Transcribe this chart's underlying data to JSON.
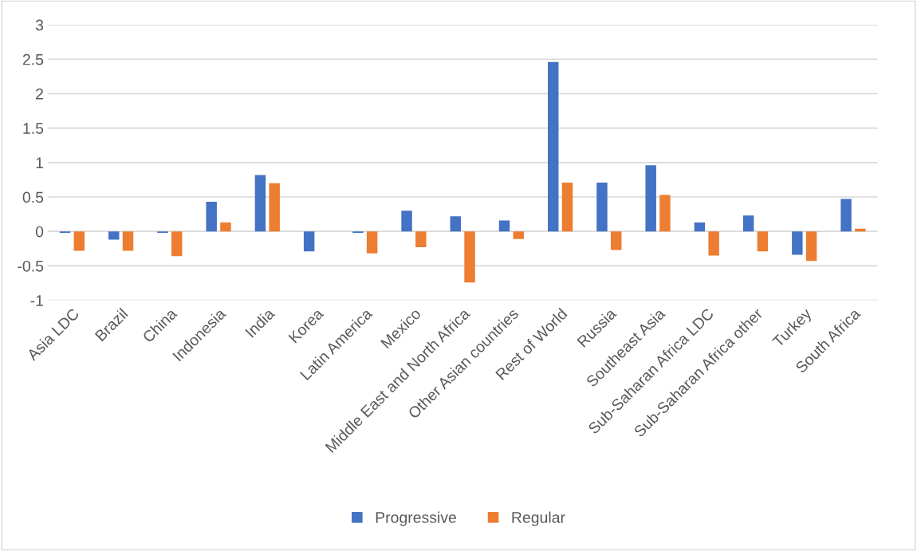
{
  "chart_data": {
    "type": "bar",
    "categories": [
      "Asia LDC",
      "Brazil",
      "China",
      "Indonesia",
      "India",
      "Korea",
      "Latin America",
      "Mexico",
      "Middle East and North Africa",
      "Other Asian countries",
      "Rest of World",
      "Russia",
      "Southeast Asia",
      "Sub-Saharan Africa LDC",
      "Sub-Saharan Africa other",
      "Turkey",
      "South Africa"
    ],
    "series": [
      {
        "name": "Progressive",
        "color": "#4472c4",
        "values": [
          -0.02,
          -0.12,
          -0.02,
          0.43,
          0.82,
          -0.29,
          -0.02,
          0.3,
          0.22,
          0.16,
          2.46,
          0.71,
          0.96,
          0.13,
          0.23,
          -0.34,
          0.47
        ]
      },
      {
        "name": "Regular",
        "color": "#ed7d31",
        "values": [
          -0.28,
          -0.28,
          -0.36,
          0.13,
          0.7,
          0,
          -0.32,
          -0.23,
          -0.74,
          -0.11,
          0.71,
          -0.27,
          0.53,
          -0.35,
          -0.29,
          -0.43,
          0.04
        ]
      }
    ],
    "ylim": [
      -1,
      3
    ],
    "yticks": [
      -1,
      -0.5,
      0,
      0.5,
      1,
      1.5,
      2,
      2.5,
      3
    ],
    "grid": "y",
    "legend": "bottom"
  }
}
